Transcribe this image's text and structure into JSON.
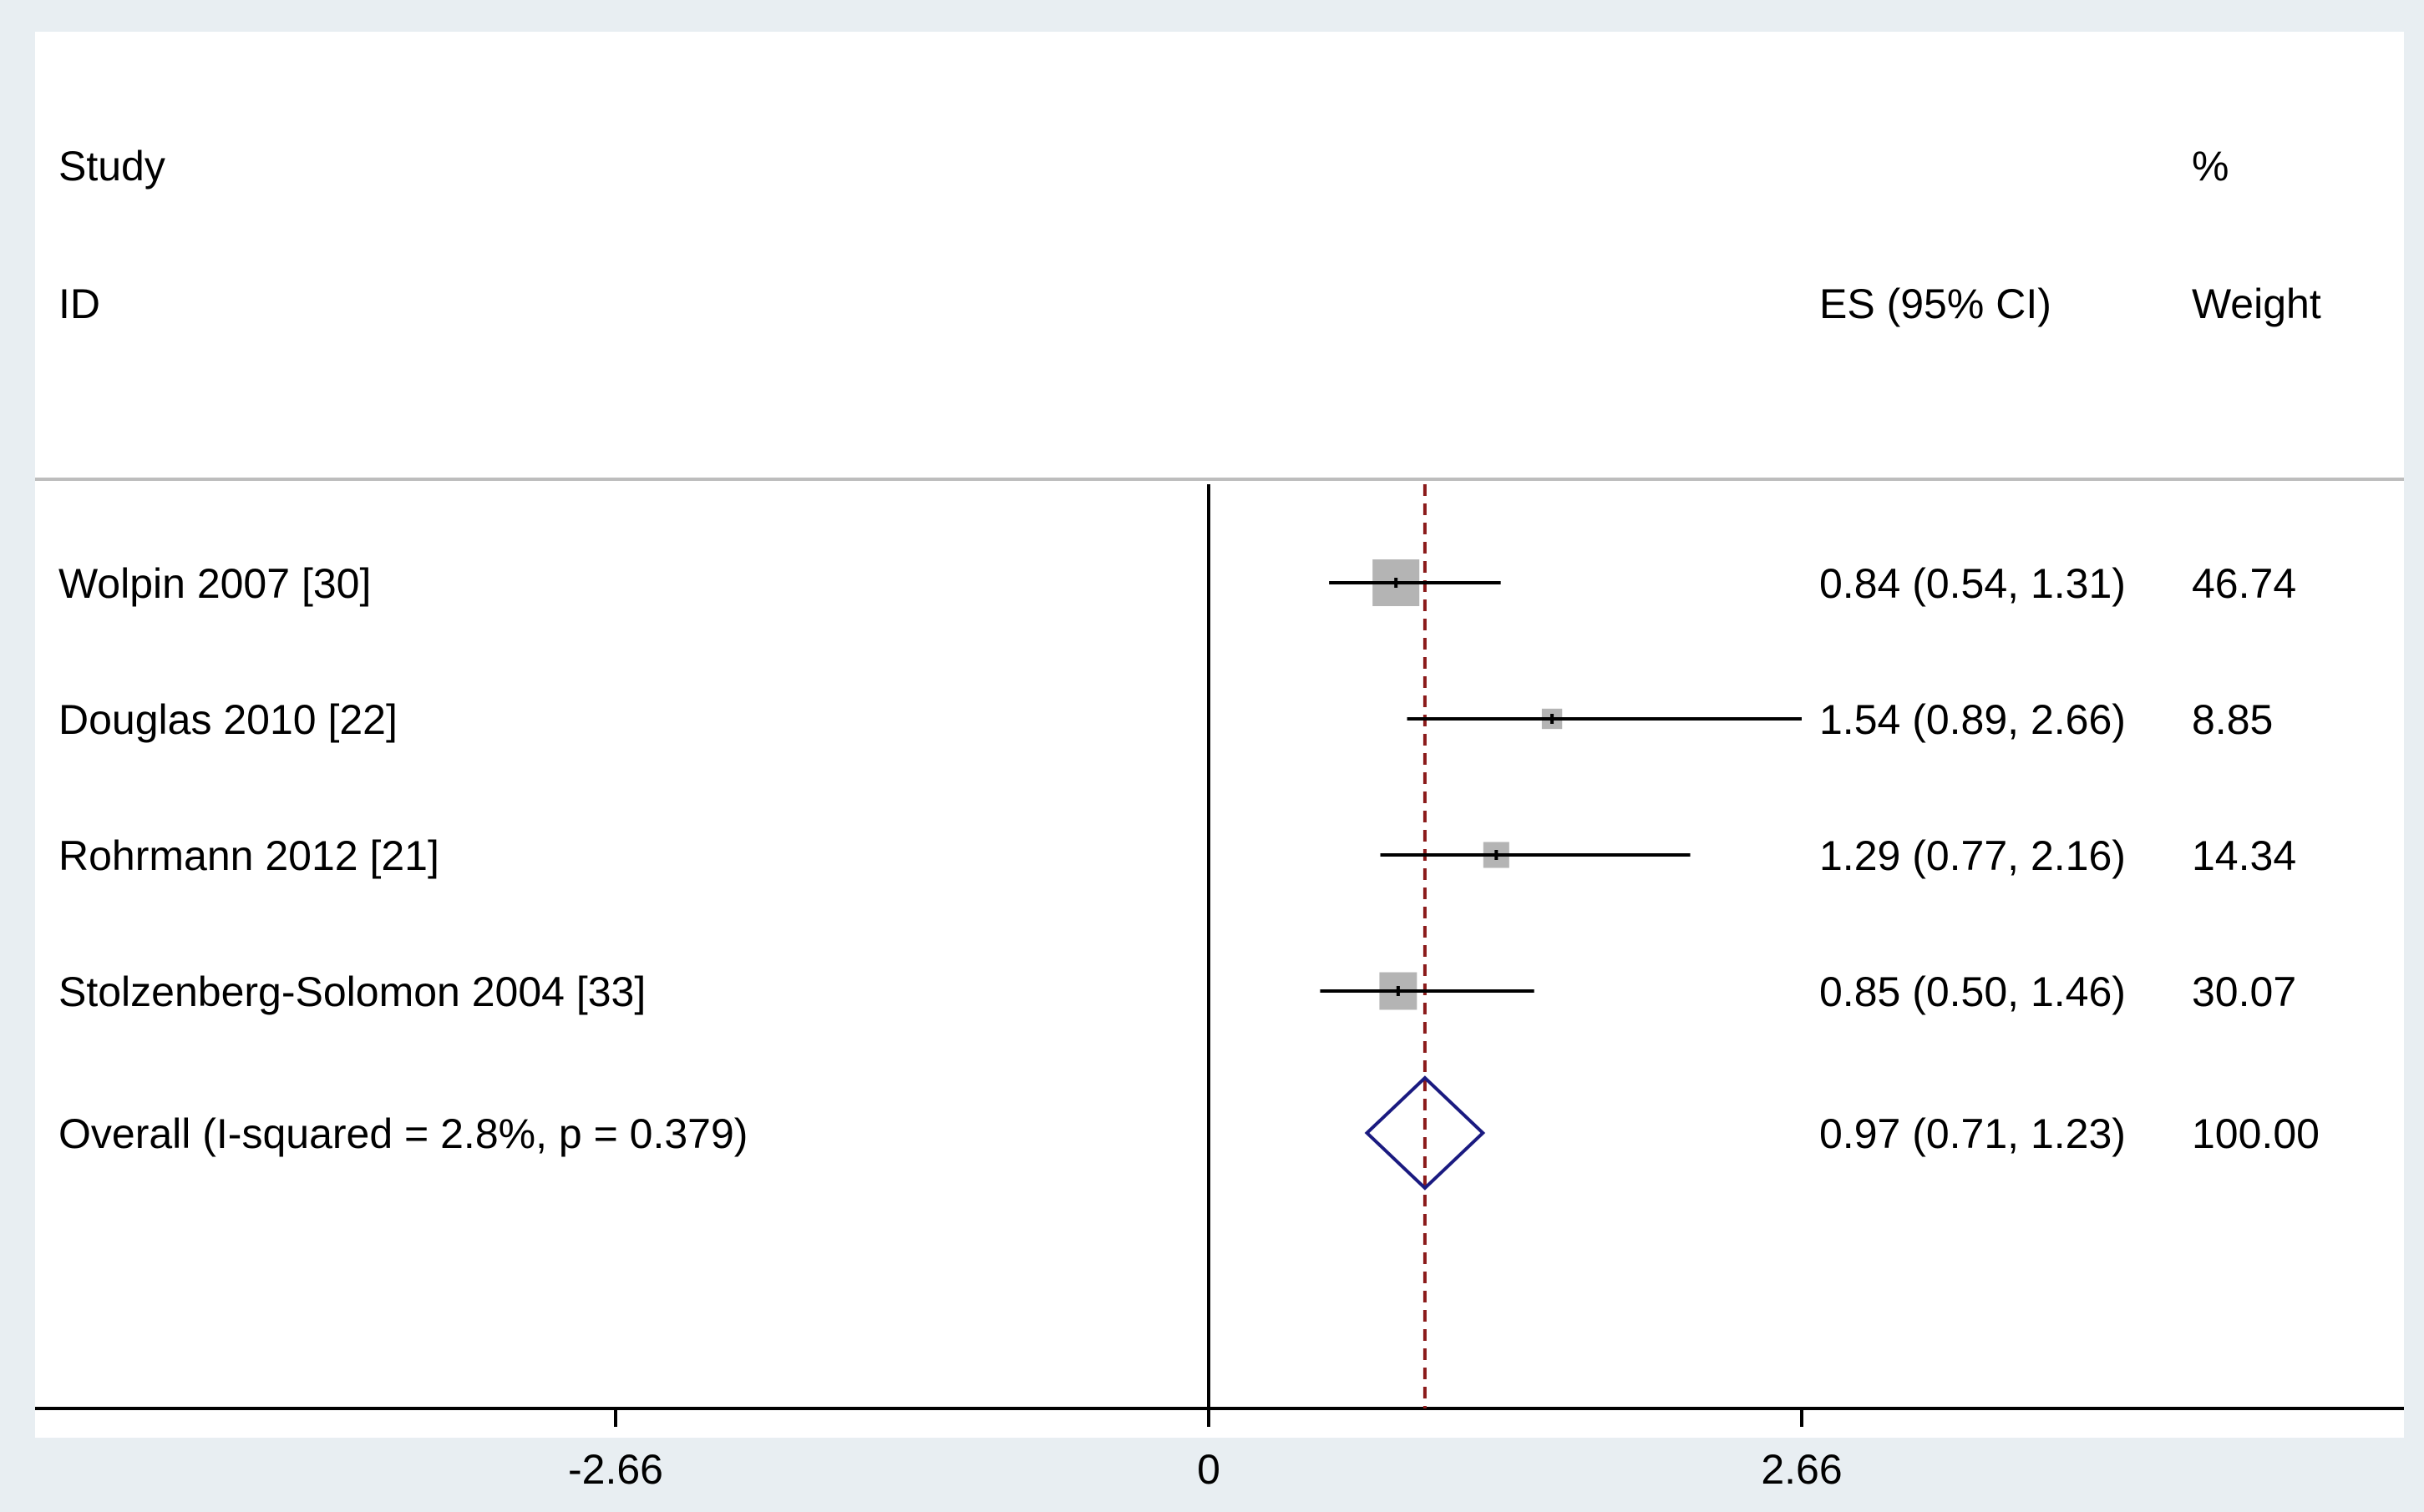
{
  "header": {
    "study_line1": "Study",
    "study_line2": "ID",
    "es_label": "ES (95% CI)",
    "weight_line1": "%",
    "weight_line2": "Weight"
  },
  "colors": {
    "frame_bg": "#e8eef2",
    "panel_bg": "#ffffff",
    "marker_fill": "#b4b4b4",
    "ref_line": "#8b1a1a",
    "diamond": "#1a1a80",
    "ink": "#000000"
  },
  "chart_data": {
    "type": "forest",
    "title": "",
    "xlabel": "",
    "ylabel": "",
    "xlim": [
      -5.3,
      5.3
    ],
    "xticks": [
      -2.66,
      0,
      2.66
    ],
    "xtick_labels": [
      "-2.66",
      "0",
      "2.66"
    ],
    "null_line": 0,
    "overall_line": 0.97,
    "studies": [
      {
        "label": "Wolpin 2007  [30]",
        "es": 0.84,
        "lo": 0.54,
        "hi": 1.31,
        "es_text": "0.84 (0.54, 1.31)",
        "weight": 46.74,
        "weight_text": "46.74"
      },
      {
        "label": "Douglas 2010  [22]",
        "es": 1.54,
        "lo": 0.89,
        "hi": 2.66,
        "es_text": "1.54 (0.89, 2.66)",
        "weight": 8.85,
        "weight_text": "8.85"
      },
      {
        "label": "Rohrmann 2012  [21]",
        "es": 1.29,
        "lo": 0.77,
        "hi": 2.16,
        "es_text": "1.29 (0.77, 2.16)",
        "weight": 14.34,
        "weight_text": "14.34"
      },
      {
        "label": "Stolzenberg-Solomon 2004  [33]",
        "es": 0.85,
        "lo": 0.5,
        "hi": 1.46,
        "es_text": "0.85 (0.50, 1.46)",
        "weight": 30.07,
        "weight_text": "30.07"
      }
    ],
    "overall": {
      "label": "Overall  (I-squared = 2.8%, p = 0.379)",
      "es": 0.97,
      "lo": 0.71,
      "hi": 1.23,
      "es_text": "0.97 (0.71, 1.23)",
      "weight_text": "100.00"
    }
  }
}
